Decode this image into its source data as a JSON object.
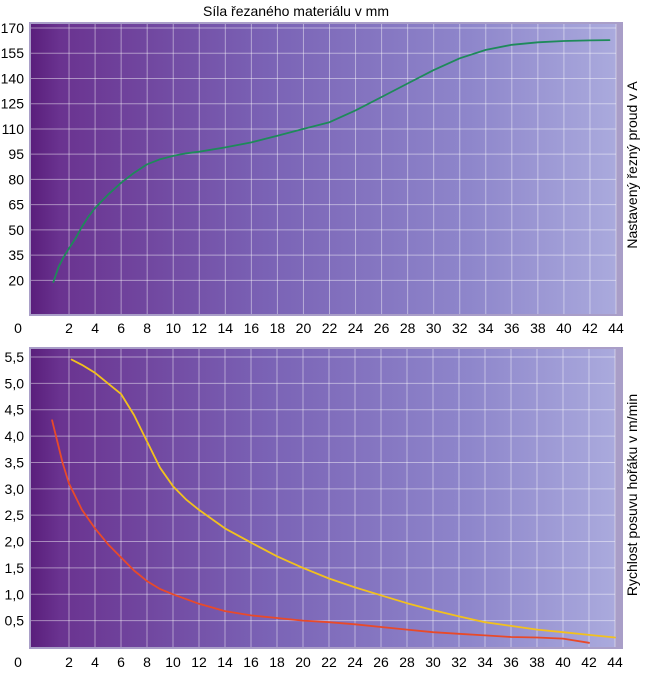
{
  "chart_data": [
    {
      "type": "line",
      "title": "Síla řezaného materiálu v mm",
      "xlabel": "",
      "ylabel": "Nastavený řezný proud v A",
      "xlim": [
        0,
        44
      ],
      "ylim": [
        0,
        170
      ],
      "x_ticks": [
        "0",
        "2",
        "4",
        "6",
        "8",
        "10",
        "12",
        "14",
        "16",
        "18",
        "20",
        "22",
        "24",
        "26",
        "28",
        "30",
        "32",
        "34",
        "36",
        "38",
        "40",
        "42",
        "44"
      ],
      "y_ticks": [
        "20",
        "35",
        "50",
        "65",
        "80",
        "95",
        "110",
        "125",
        "140",
        "155",
        "170"
      ],
      "grid": true,
      "series": [
        {
          "color": "#1e8a5a",
          "x": [
            0.8,
            1.2,
            1.6,
            2.0,
            2.5,
            3.0,
            3.5,
            4.0,
            5.0,
            6.0,
            7.0,
            8.0,
            9.0,
            10.0,
            11.0,
            12.0,
            14.0,
            16.0,
            18.0,
            20.0,
            22.0,
            24.0,
            26.0,
            28.0,
            30.0,
            32.0,
            34.0,
            36.0,
            38.0,
            40.0,
            42.0,
            43.5
          ],
          "y": [
            19,
            28,
            34,
            39,
            45,
            52,
            58,
            63,
            71,
            78,
            84,
            89,
            92,
            94,
            95.5,
            96.5,
            99,
            102,
            106,
            110,
            114,
            121,
            129,
            137,
            145,
            152,
            157,
            160,
            161.5,
            162.3,
            162.6,
            162.8
          ]
        }
      ]
    },
    {
      "type": "line",
      "title": "",
      "xlabel": "",
      "ylabel": "Rychlost posuvu hořáku v m/min",
      "xlim": [
        0,
        44
      ],
      "ylim": [
        0,
        5.5
      ],
      "x_ticks": [
        "0",
        "2",
        "4",
        "6",
        "8",
        "10",
        "12",
        "14",
        "16",
        "18",
        "20",
        "22",
        "24",
        "26",
        "28",
        "30",
        "32",
        "34",
        "36",
        "38",
        "40",
        "42",
        "44"
      ],
      "y_ticks": [
        "0,5",
        "1,0",
        "1,5",
        "2,0",
        "2,5",
        "3,0",
        "3,5",
        "4,0",
        "4,5",
        "5,0",
        "5,5"
      ],
      "grid": true,
      "series": [
        {
          "color": "#e84a2a",
          "x": [
            0.7,
            1.0,
            1.5,
            2.0,
            3.0,
            4.0,
            5.0,
            6.0,
            7.0,
            8.0,
            9.0,
            10.0,
            12.0,
            14.0,
            16.0,
            18.0,
            20.0,
            22.0,
            24.0,
            26.0,
            28.0,
            30.0,
            32.0,
            34.0,
            36.0,
            38.0,
            40.0,
            42.0
          ],
          "y": [
            4.3,
            4.0,
            3.5,
            3.1,
            2.6,
            2.25,
            1.95,
            1.7,
            1.45,
            1.25,
            1.1,
            1.0,
            0.82,
            0.68,
            0.6,
            0.55,
            0.5,
            0.47,
            0.43,
            0.38,
            0.33,
            0.28,
            0.25,
            0.22,
            0.19,
            0.18,
            0.16,
            0.08
          ]
        },
        {
          "color": "#f2c11e",
          "x": [
            2.2,
            3.0,
            4.0,
            5.0,
            6.0,
            7.0,
            8.0,
            9.0,
            10.0,
            11.0,
            12.0,
            14.0,
            16.0,
            18.0,
            20.0,
            22.0,
            24.0,
            26.0,
            28.0,
            30.0,
            32.0,
            34.0,
            36.0,
            38.0,
            40.0,
            42.0,
            44.0
          ],
          "y": [
            5.45,
            5.35,
            5.2,
            5.0,
            4.8,
            4.4,
            3.9,
            3.4,
            3.05,
            2.8,
            2.6,
            2.25,
            1.98,
            1.72,
            1.5,
            1.3,
            1.13,
            0.98,
            0.83,
            0.7,
            0.58,
            0.47,
            0.4,
            0.33,
            0.28,
            0.23,
            0.18
          ]
        }
      ]
    }
  ]
}
